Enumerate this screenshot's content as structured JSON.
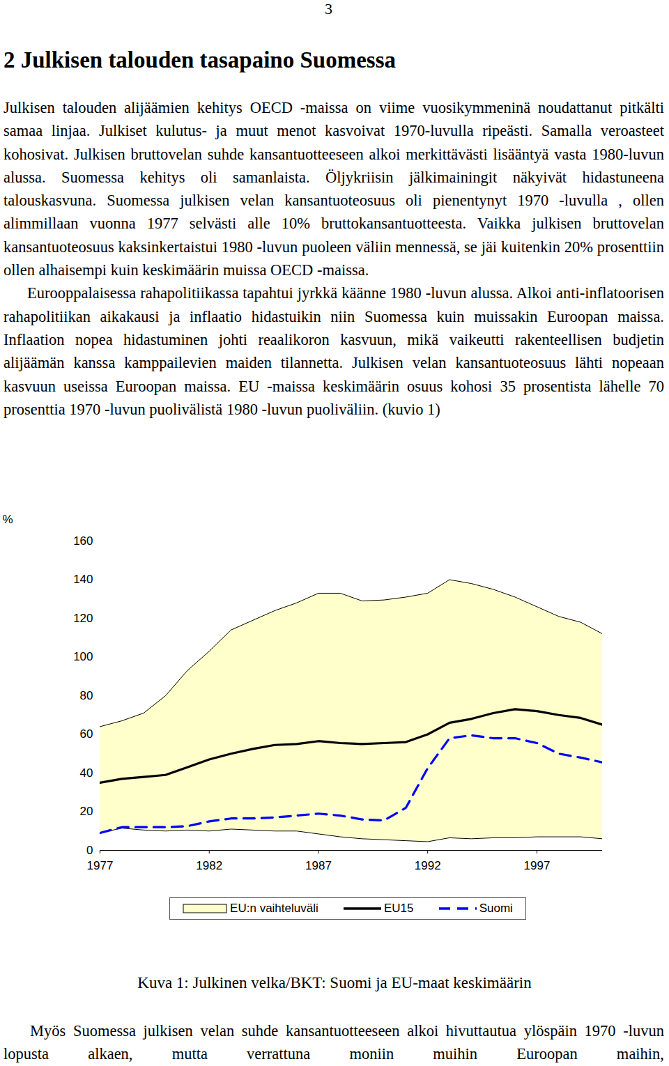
{
  "page_number": "3",
  "heading": "2 Julkisen talouden tasapaino Suomessa",
  "paragraphs": [
    "Julkisen talouden alijäämien kehitys OECD -maissa on viime vuosikymmeninä noudattanut pitkälti samaa linjaa. Julkiset kulutus- ja muut menot kasvoivat 1970-luvulla ripeästi. Samalla veroasteet kohosivat. Julkisen bruttovelan suhde kansantuotteeseen alkoi merkittävästi lisääntyä vasta 1980-luvun alussa. Suomessa kehitys oli samanlaista. Öljykriisin jälkimainingit näkyivät hidastuneena talouskasvuna. Suomessa julkisen velan kansantuoteosuus oli pienentynyt 1970 -luvulla , ollen alimmillaan vuonna 1977 selvästi alle 10% bruttokansantuotteesta. Vaikka julkisen bruttovelan kansantuoteosuus kaksinkertaistui 1980 -luvun puoleen väliin mennessä, se jäi kuitenkin 20% prosenttiin ollen alhaisempi kuin keskimäärin muissa OECD -maissa.",
    "Eurooppalaisessa rahapolitiikassa tapahtui jyrkkä käänne 1980 -luvun alussa. Alkoi anti-inflatoorisen rahapolitiikan aikakausi ja inflaatio hidastuikin niin Suomessa kuin muissakin Euroopan maissa. Inflaation nopea hidastuminen johti reaalikoron kasvuun, mikä vaikeutti rakenteellisen budjetin alijäämän kanssa kamppailevien maiden tilannetta. Julkisen velan kansantuoteosuus lähti nopeaan kasvuun useissa Euroopan maissa. EU -maissa keskimäärin osuus kohosi 35 prosentista lähelle 70 prosenttia 1970 -luvun puolivälistä 1980 -luvun puoliväliin. (kuvio 1)"
  ],
  "chart_data": {
    "type": "line",
    "ylabel": "%",
    "x": [
      1977,
      1978,
      1979,
      1980,
      1981,
      1982,
      1983,
      1984,
      1985,
      1986,
      1987,
      1988,
      1989,
      1990,
      1991,
      1992,
      1993,
      1994,
      1995,
      1996,
      1997,
      1998,
      1999,
      2000
    ],
    "xlim": [
      1977,
      2000
    ],
    "xticks": [
      1977,
      1982,
      1987,
      1992,
      1997
    ],
    "ylim": [
      0,
      160
    ],
    "yticks": [
      0,
      20,
      40,
      60,
      80,
      100,
      120,
      140,
      160
    ],
    "grid": false,
    "legend": "bottom",
    "series": [
      {
        "name": "EU:n vaihteluväli",
        "type": "area",
        "color": "#ffffcc",
        "min": [
          9,
          11.5,
          10.5,
          10,
          10.5,
          10,
          11,
          10.5,
          10,
          10,
          8.5,
          7,
          6,
          5.5,
          5,
          4.5,
          6.5,
          6,
          6.5,
          6.5,
          7,
          7,
          7,
          6
        ],
        "max": [
          64,
          67,
          71,
          80,
          93,
          103,
          114,
          119,
          124,
          128,
          133,
          133,
          129,
          129.5,
          131,
          133,
          140,
          138,
          135,
          131,
          126,
          121,
          118,
          112
        ]
      },
      {
        "name": "EU15",
        "type": "line",
        "color": "#000000",
        "line_style": "solid",
        "values": [
          35,
          37,
          38,
          39,
          43,
          47,
          50,
          52.5,
          54.5,
          55,
          56.5,
          55.5,
          55,
          55.5,
          56,
          60,
          66,
          68,
          71,
          73,
          72,
          70,
          68.5,
          65
        ]
      },
      {
        "name": "Suomi",
        "type": "line",
        "color": "#0000ff",
        "line_style": "dashed",
        "values": [
          9,
          12,
          12,
          12,
          12.5,
          15,
          16.5,
          16.5,
          17,
          18,
          19,
          18,
          16,
          15.5,
          22,
          42.5,
          58,
          59.5,
          58,
          58,
          55.5,
          50,
          48,
          45.5
        ]
      }
    ]
  },
  "caption": "Kuva 1: Julkinen velka/BKT: Suomi ja EU-maat keskimäärin",
  "paragraph_after": "Myös Suomessa julkisen velan suhde kansantuotteeseen alkoi hivuttautua ylöspäin 1970 -luvun lopusta alkaen, mutta verrattuna moniin muihin Euroopan maihin,"
}
